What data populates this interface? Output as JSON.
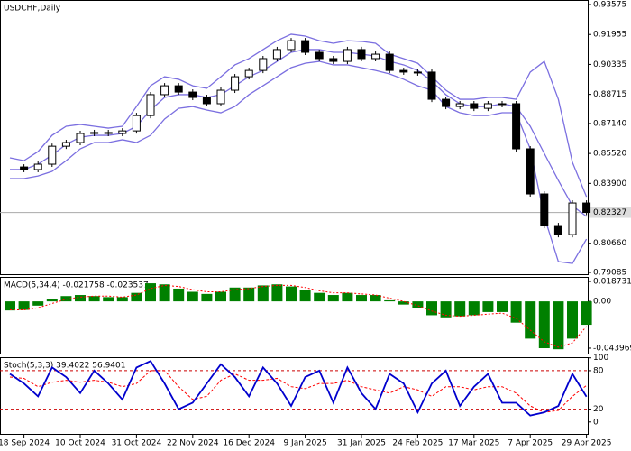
{
  "chart_data": [
    {
      "type": "candlestick",
      "title": "USDCHF,Daily",
      "close": [
        0.8479,
        0.8465,
        0.8494,
        0.8591,
        0.8611,
        0.866,
        0.8665,
        0.866,
        0.8674,
        0.8757,
        0.887,
        0.8918,
        0.8884,
        0.8855,
        0.8821,
        0.8894,
        0.8967,
        0.9001,
        0.9065,
        0.9114,
        0.9162,
        0.9099,
        0.9065,
        0.905,
        0.9114,
        0.9065,
        0.9089,
        0.9001,
        0.8992,
        0.8992,
        0.8845,
        0.8806,
        0.8821,
        0.8796,
        0.8821,
        0.8821,
        0.8577,
        0.8333,
        0.8162,
        0.8113,
        0.8284,
        0.8233
      ],
      "bollinger_upper": [
        0.8528,
        0.8513,
        0.8562,
        0.865,
        0.8699,
        0.8709,
        0.8699,
        0.8689,
        0.8699,
        0.8806,
        0.8918,
        0.8967,
        0.8953,
        0.8918,
        0.8904,
        0.8967,
        0.9031,
        0.9065,
        0.9114,
        0.9162,
        0.9197,
        0.9187,
        0.9162,
        0.9148,
        0.9162,
        0.9158,
        0.9148,
        0.9089,
        0.9065,
        0.904,
        0.8967,
        0.8894,
        0.8845,
        0.8845,
        0.8855,
        0.8855,
        0.8845,
        0.8992,
        0.905,
        0.8845,
        0.8504,
        0.8318
      ],
      "bollinger_middle": [
        0.8465,
        0.8465,
        0.8494,
        0.8543,
        0.8601,
        0.864,
        0.865,
        0.865,
        0.866,
        0.8699,
        0.8787,
        0.8855,
        0.887,
        0.887,
        0.8855,
        0.887,
        0.8918,
        0.8967,
        0.9001,
        0.905,
        0.9099,
        0.9114,
        0.9114,
        0.9099,
        0.9099,
        0.9089,
        0.9079,
        0.905,
        0.9031,
        0.9001,
        0.8943,
        0.887,
        0.8821,
        0.8806,
        0.8806,
        0.8821,
        0.8806,
        0.8699,
        0.8552,
        0.8406,
        0.8269,
        0.8211
      ],
      "bollinger_lower": [
        0.8416,
        0.8416,
        0.843,
        0.8455,
        0.8513,
        0.8577,
        0.8611,
        0.8611,
        0.8626,
        0.8611,
        0.865,
        0.8738,
        0.8796,
        0.8806,
        0.8787,
        0.8772,
        0.8806,
        0.887,
        0.8918,
        0.8967,
        0.9016,
        0.904,
        0.905,
        0.9031,
        0.9031,
        0.9016,
        0.9001,
        0.8982,
        0.8953,
        0.8918,
        0.8894,
        0.8806,
        0.8772,
        0.8757,
        0.8757,
        0.8772,
        0.8772,
        0.8577,
        0.8211,
        0.7967,
        0.7957,
        0.8089
      ],
      "band_color": "#7b6fe0",
      "current_price": 0.82327,
      "ylim": [
        0.7894,
        0.9382
      ],
      "yticks": [
        0.93575,
        0.91955,
        0.90335,
        0.88715,
        {
          "value": 0.8714,
          "label": "0.87140"
        },
        {
          "value": 0.8552,
          "label": "0.85520"
        },
        {
          "value": 0.839,
          "label": "0.83900"
        },
        {
          "value": 0.8066,
          "label": "0.80660"
        },
        0.79085
      ]
    },
    {
      "type": "macd",
      "title": "MACD(5,34,4) -0.021758 -0.023537",
      "histogram": [
        -0.0085,
        -0.008,
        -0.004,
        0.002,
        0.005,
        0.006,
        0.005,
        0.004,
        0.004,
        0.008,
        0.017,
        0.016,
        0.012,
        0.009,
        0.007,
        0.009,
        0.013,
        0.013,
        0.015,
        0.016,
        0.014,
        0.011,
        0.008,
        0.006,
        0.008,
        0.006,
        0.006,
        0.001,
        -0.003,
        -0.006,
        -0.013,
        -0.015,
        -0.014,
        -0.013,
        -0.01,
        -0.01,
        -0.02,
        -0.035,
        -0.044,
        -0.045,
        -0.035,
        -0.022
      ],
      "signal": [
        -0.008,
        -0.008,
        -0.006,
        -0.002,
        0.002,
        0.004,
        0.005,
        0.005,
        0.004,
        0.006,
        0.012,
        0.015,
        0.014,
        0.011,
        0.009,
        0.009,
        0.011,
        0.012,
        0.014,
        0.015,
        0.015,
        0.013,
        0.01,
        0.008,
        0.008,
        0.007,
        0.006,
        0.003,
        0.0,
        -0.004,
        -0.009,
        -0.013,
        -0.014,
        -0.013,
        -0.012,
        -0.011,
        -0.016,
        -0.027,
        -0.038,
        -0.043,
        -0.039,
        -0.0235
      ],
      "hist_color": "#008000",
      "signal_color": "#ff0000",
      "ylim": [
        -0.04993,
        0.02299
      ],
      "yticks": [
        0.018731,
        {
          "value": 0,
          "label": "0.00"
        },
        -0.043969
      ]
    },
    {
      "type": "stochastic",
      "title": "Stoch(5,3,3) 39.4022 56.9401",
      "main": [
        75,
        60,
        40,
        85,
        70,
        45,
        80,
        60,
        35,
        85,
        95,
        60,
        20,
        30,
        60,
        90,
        70,
        40,
        85,
        60,
        25,
        70,
        80,
        30,
        85,
        45,
        20,
        75,
        60,
        15,
        60,
        80,
        25,
        55,
        75,
        30,
        30,
        10,
        15,
        25,
        75,
        39.4
      ],
      "signal": [
        70,
        68,
        55,
        62,
        65,
        62,
        65,
        62,
        55,
        60,
        80,
        80,
        55,
        35,
        40,
        65,
        75,
        65,
        65,
        68,
        55,
        52,
        60,
        60,
        65,
        55,
        50,
        45,
        55,
        50,
        40,
        55,
        55,
        50,
        55,
        55,
        45,
        25,
        15,
        18,
        40,
        56.9
      ],
      "main_color": "#0000cd",
      "signal_color": "#ff0000",
      "levels": [
        80,
        20
      ],
      "ylim": [
        -20,
        101
      ],
      "yticks": [
        100,
        80,
        20,
        0
      ],
      "categories": [
        null,
        "18 Sep 2024",
        null,
        null,
        null,
        "10 Oct 2024",
        null,
        null,
        null,
        "31 Oct 2024",
        null,
        null,
        null,
        "22 Nov 2024",
        null,
        null,
        null,
        "16 Dec 2024",
        null,
        null,
        null,
        "9 Jan 2025",
        null,
        null,
        null,
        "31 Jan 2025",
        null,
        null,
        null,
        "24 Feb 2025",
        null,
        null,
        null,
        "17 Mar 2025",
        null,
        null,
        null,
        "7 Apr 2025",
        null,
        null,
        null,
        "29 Apr 2025"
      ]
    }
  ]
}
